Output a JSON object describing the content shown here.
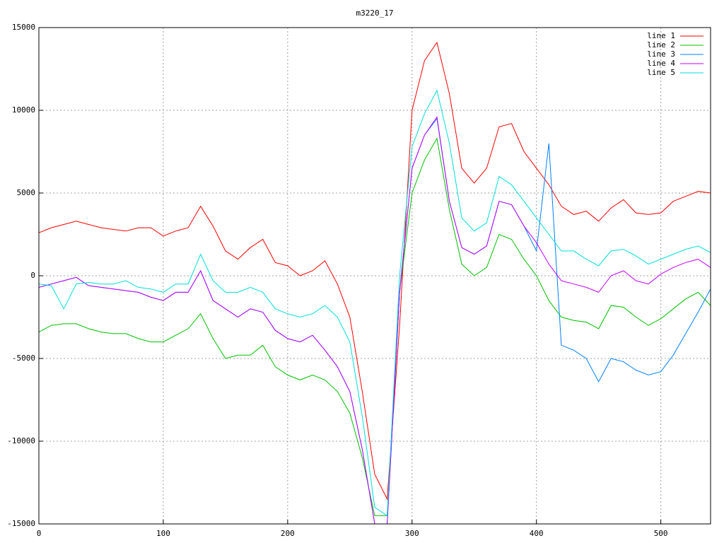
{
  "chart_data": {
    "type": "line",
    "title": "m3220_17",
    "x": [
      0,
      10,
      20,
      30,
      40,
      50,
      60,
      70,
      80,
      90,
      100,
      110,
      120,
      130,
      140,
      150,
      160,
      170,
      180,
      190,
      200,
      210,
      220,
      230,
      240,
      250,
      260,
      270,
      280,
      290,
      300,
      310,
      320,
      330,
      340,
      350,
      360,
      370,
      380,
      390,
      400,
      410,
      420,
      430,
      440,
      450,
      460,
      470,
      480,
      490,
      500,
      510,
      520,
      530,
      540
    ],
    "xlim": [
      0,
      540
    ],
    "xticks": [
      0,
      100,
      200,
      300,
      400,
      500
    ],
    "ylim": [
      -15000,
      15000
    ],
    "yticks": [
      -15000,
      -10000,
      -5000,
      0,
      5000,
      10000,
      15000
    ],
    "grid": true,
    "legend": "top-right",
    "series": [
      {
        "name": "line 1",
        "color": "#ff0000",
        "values": [
          2600,
          2900,
          3100,
          3300,
          3100,
          2900,
          2800,
          2700,
          2900,
          2900,
          2400,
          2700,
          2900,
          4200,
          3000,
          1500,
          1000,
          1700,
          2200,
          800,
          600,
          0,
          300,
          900,
          -500,
          -2500,
          -7000,
          -12000,
          -13500,
          -3000,
          10000,
          13000,
          14100,
          11000,
          6500,
          5600,
          6500,
          9000,
          9200,
          7500,
          6500,
          5500,
          4200,
          3700,
          3900,
          3300,
          4100,
          4600,
          3800,
          3700,
          3800,
          4500,
          4800,
          5100,
          5000
        ]
      },
      {
        "name": "line 2",
        "color": "#00c000",
        "values": [
          -3400,
          -3000,
          -2900,
          -2900,
          -3200,
          -3400,
          -3500,
          -3500,
          -3800,
          -4000,
          -4000,
          -3600,
          -3200,
          -2300,
          -3800,
          -5000,
          -4800,
          -4800,
          -4200,
          -5500,
          -6000,
          -6300,
          -6000,
          -6300,
          -7000,
          -8300,
          -11000,
          -14500,
          -14500,
          -1000,
          5000,
          7000,
          8300,
          4000,
          700,
          0,
          500,
          2500,
          2200,
          1000,
          0,
          -1500,
          -2500,
          -2700,
          -2800,
          -3200,
          -1800,
          -1900,
          -2500,
          -3000,
          -2600,
          -2000,
          -1400,
          -1000,
          -1800
        ]
      },
      {
        "name": "line 3",
        "color": "#0080ff",
        "values": [
          -700,
          -500,
          -300,
          -100,
          -600,
          -700,
          -800,
          -900,
          -1000,
          -1300,
          -1500,
          -1000,
          -1000,
          300,
          -1500,
          -2000,
          -2500,
          -2000,
          -2200,
          -3300,
          -3800,
          -4000,
          -3600,
          -4500,
          -5500,
          -7000,
          -10500,
          -15000,
          -15000,
          -1000,
          6500,
          8500,
          9500,
          4500,
          1700,
          1300,
          1800,
          4500,
          4300,
          3000,
          1500,
          8000,
          -4200,
          -4500,
          -5000,
          -6400,
          -5000,
          -5200,
          -5700,
          -6000,
          -5800,
          -4800,
          -3500,
          -2200,
          -800
        ]
      },
      {
        "name": "line 4",
        "color": "#c000ff",
        "values": [
          -700,
          -500,
          -300,
          -100,
          -600,
          -700,
          -800,
          -900,
          -1000,
          -1300,
          -1500,
          -1000,
          -1000,
          300,
          -1500,
          -2000,
          -2500,
          -2000,
          -2200,
          -3300,
          -3800,
          -4000,
          -3600,
          -4500,
          -5500,
          -7000,
          -10500,
          -15000,
          -15000,
          -1000,
          6500,
          8500,
          9600,
          4500,
          1700,
          1300,
          1800,
          4500,
          4300,
          3000,
          2000,
          700,
          -300,
          -500,
          -700,
          -1000,
          0,
          300,
          -300,
          -500,
          100,
          500,
          800,
          1000,
          500
        ]
      },
      {
        "name": "line 5",
        "color": "#00dddd",
        "values": [
          -500,
          -600,
          -2000,
          -500,
          -400,
          -500,
          -500,
          -300,
          -700,
          -800,
          -1000,
          -500,
          -500,
          1300,
          -300,
          -1000,
          -1000,
          -700,
          -1000,
          -2000,
          -2300,
          -2500,
          -2300,
          -1800,
          -2500,
          -4000,
          -8500,
          -14000,
          -14500,
          0,
          7800,
          9800,
          11200,
          8000,
          3500,
          2700,
          3200,
          6000,
          5500,
          4500,
          3500,
          2500,
          1500,
          1500,
          1000,
          600,
          1500,
          1600,
          1200,
          700,
          1000,
          1300,
          1600,
          1800,
          1400
        ]
      }
    ]
  }
}
